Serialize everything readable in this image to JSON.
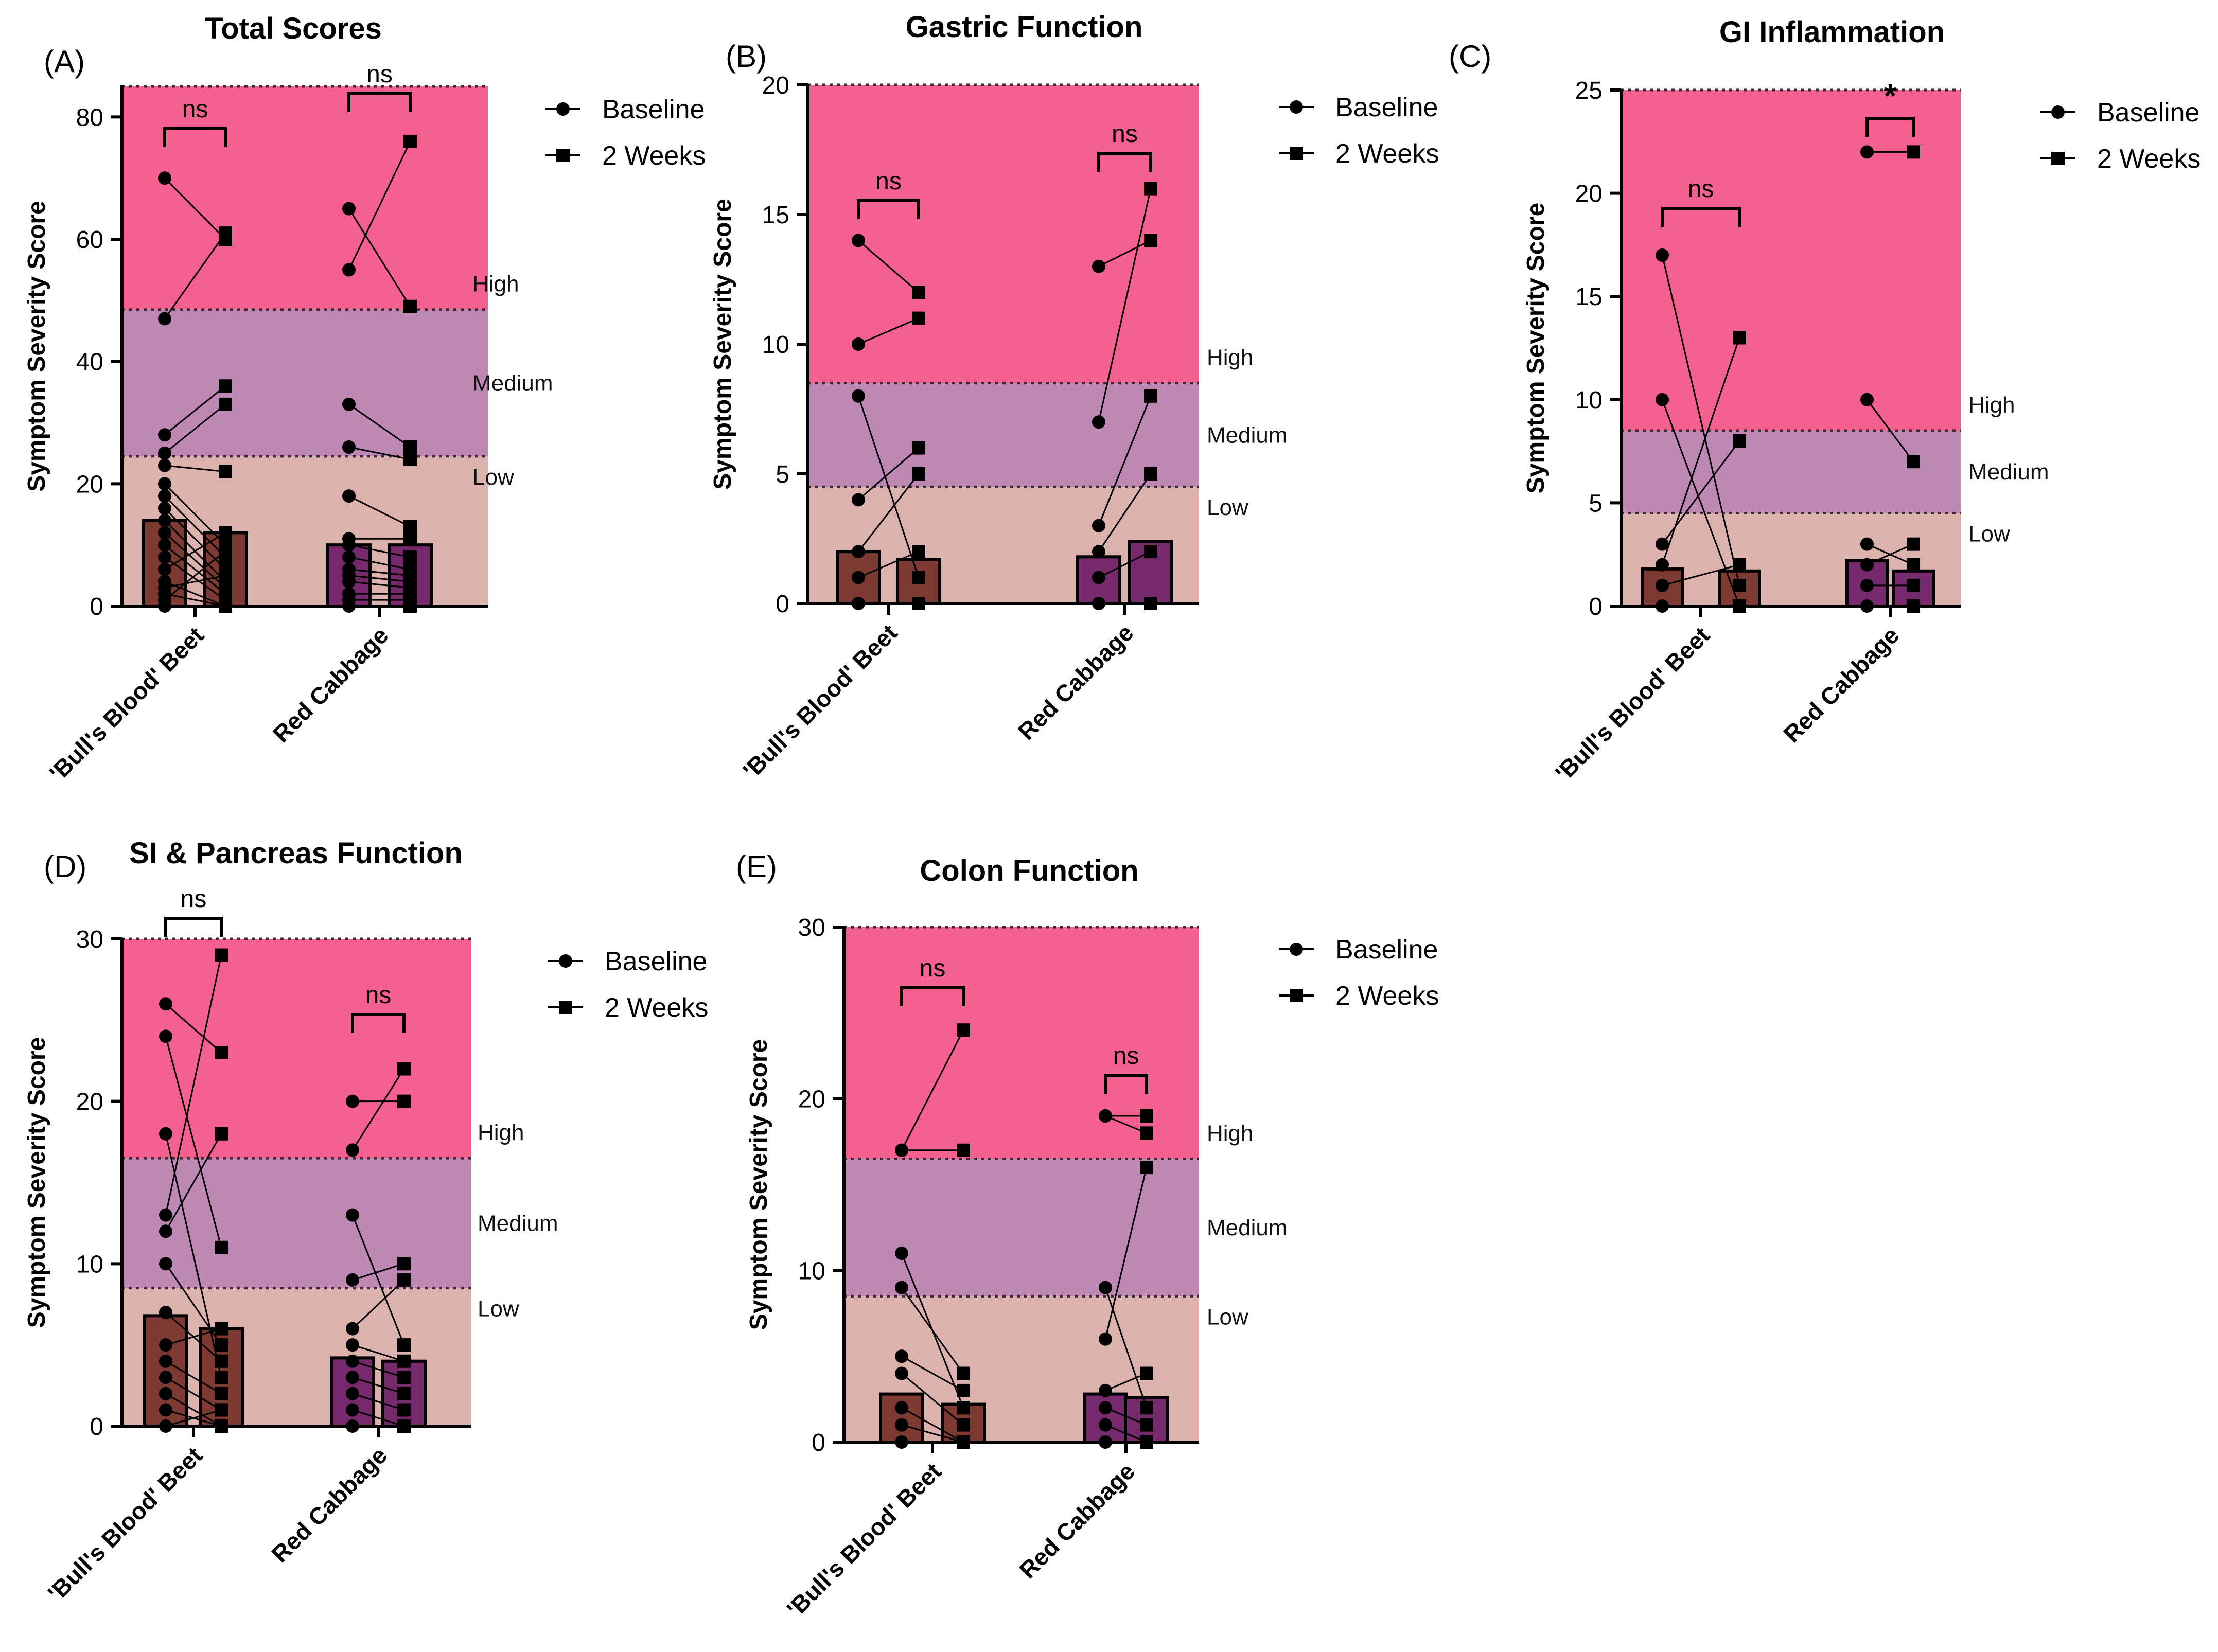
{
  "figure": {
    "legend": {
      "baseline": "Baseline",
      "two_weeks": "2 Weeks"
    },
    "severity_labels": {
      "high": "High",
      "medium": "Medium",
      "low": "Low"
    },
    "y_axis_label": "Symptom Severity Score",
    "groups": [
      "'Bull's Blood' Beet",
      "Red Cabbage"
    ],
    "colors": {
      "high_zone": "#F4618F",
      "medium_zone": "#BE87B4",
      "low_zone": "#DBB2AD",
      "beet_bar": "#7C3A33",
      "cabbage_bar": "#772A6B",
      "ink": "#000000"
    }
  },
  "chart_data": [
    {
      "type": "bar",
      "panel": "(A)",
      "title": "Total Scores",
      "ylabel": "Symptom Severity Score",
      "ylim": [
        0,
        85
      ],
      "yticks": [
        0,
        20,
        40,
        60,
        80
      ],
      "thresholds": {
        "low_max": 24.5,
        "medium_max": 48.5
      },
      "categories": [
        "'Bull's Blood' Beet",
        "Red Cabbage"
      ],
      "significance": [
        "ns",
        "ns"
      ],
      "series": [
        {
          "name": "Baseline",
          "values": [
            14,
            10
          ]
        },
        {
          "name": "2 Weeks",
          "values": [
            12,
            10
          ]
        }
      ],
      "pairs": [
        [
          [
            70,
            60
          ],
          [
            47,
            61
          ],
          [
            28,
            36
          ],
          [
            25,
            33
          ],
          [
            23,
            22
          ],
          [
            20,
            10
          ],
          [
            18,
            8
          ],
          [
            16,
            6
          ],
          [
            14,
            4
          ],
          [
            12,
            3
          ],
          [
            10,
            2
          ],
          [
            8,
            1
          ],
          [
            6,
            12
          ],
          [
            4,
            0
          ],
          [
            3,
            5
          ],
          [
            2,
            0
          ],
          [
            1,
            9
          ],
          [
            0,
            0
          ]
        ],
        [
          [
            65,
            49
          ],
          [
            55,
            76
          ],
          [
            33,
            26
          ],
          [
            26,
            24
          ],
          [
            18,
            13
          ],
          [
            11,
            11
          ],
          [
            10,
            8
          ],
          [
            8,
            6
          ],
          [
            6,
            5
          ],
          [
            5,
            4
          ],
          [
            4,
            3
          ],
          [
            2,
            2
          ],
          [
            1,
            1
          ],
          [
            0,
            0
          ]
        ]
      ]
    },
    {
      "type": "bar",
      "panel": "(B)",
      "title": "Gastric Function",
      "ylabel": "Symptom Severity Score",
      "ylim": [
        0,
        20
      ],
      "yticks": [
        0,
        5,
        10,
        15,
        20
      ],
      "thresholds": {
        "low_max": 4.5,
        "medium_max": 8.5
      },
      "categories": [
        "'Bull's Blood' Beet",
        "Red Cabbage"
      ],
      "significance": [
        "ns",
        "ns"
      ],
      "series": [
        {
          "name": "Baseline",
          "values": [
            2,
            1.8
          ]
        },
        {
          "name": "2 Weeks",
          "values": [
            1.7,
            2.4
          ]
        }
      ],
      "pairs": [
        [
          [
            14,
            12
          ],
          [
            10,
            11
          ],
          [
            8,
            1
          ],
          [
            4,
            6
          ],
          [
            2,
            5
          ],
          [
            1,
            2
          ],
          [
            0,
            0
          ]
        ],
        [
          [
            13,
            14
          ],
          [
            7,
            16
          ],
          [
            3,
            8
          ],
          [
            2,
            5
          ],
          [
            1,
            2
          ],
          [
            0,
            0
          ]
        ]
      ]
    },
    {
      "type": "bar",
      "panel": "(C)",
      "title": "GI Inflammation",
      "ylabel": "Symptom Severity Score",
      "ylim": [
        0,
        25
      ],
      "yticks": [
        0,
        5,
        10,
        15,
        20,
        25
      ],
      "thresholds": {
        "low_max": 4.5,
        "medium_max": 8.5
      },
      "categories": [
        "'Bull's Blood' Beet",
        "Red Cabbage"
      ],
      "significance": [
        "ns",
        "*"
      ],
      "series": [
        {
          "name": "Baseline",
          "values": [
            1.8,
            2.2
          ]
        },
        {
          "name": "2 Weeks",
          "values": [
            1.7,
            1.7
          ]
        }
      ],
      "pairs": [
        [
          [
            17,
            1
          ],
          [
            10,
            0
          ],
          [
            3,
            8
          ],
          [
            2,
            13
          ],
          [
            1,
            2
          ],
          [
            0,
            0
          ]
        ],
        [
          [
            22,
            22
          ],
          [
            10,
            7
          ],
          [
            3,
            2
          ],
          [
            2,
            3
          ],
          [
            1,
            1
          ],
          [
            0,
            0
          ]
        ]
      ]
    },
    {
      "type": "bar",
      "panel": "(D)",
      "title": "SI & Pancreas Function",
      "ylabel": "Symptom Severity Score",
      "ylim": [
        0,
        30
      ],
      "yticks": [
        0,
        10,
        20,
        30
      ],
      "thresholds": {
        "low_max": 8.5,
        "medium_max": 16.5
      },
      "categories": [
        "'Bull's Blood' Beet",
        "Red Cabbage"
      ],
      "significance": [
        "ns",
        "ns"
      ],
      "series": [
        {
          "name": "Baseline",
          "values": [
            6.8,
            4.2
          ]
        },
        {
          "name": "2 Weeks",
          "values": [
            6,
            4
          ]
        }
      ],
      "pairs": [
        [
          [
            26,
            23
          ],
          [
            24,
            11
          ],
          [
            18,
            3
          ],
          [
            13,
            29
          ],
          [
            12,
            18
          ],
          [
            10,
            5
          ],
          [
            7,
            4
          ],
          [
            5,
            6
          ],
          [
            4,
            2
          ],
          [
            3,
            1
          ],
          [
            2,
            0
          ],
          [
            1,
            0
          ],
          [
            0,
            1
          ]
        ],
        [
          [
            20,
            20
          ],
          [
            17,
            22
          ],
          [
            13,
            5
          ],
          [
            9,
            10
          ],
          [
            6,
            9
          ],
          [
            5,
            4
          ],
          [
            4,
            3
          ],
          [
            3,
            2
          ],
          [
            2,
            1
          ],
          [
            1,
            0
          ],
          [
            0,
            0
          ]
        ]
      ]
    },
    {
      "type": "bar",
      "panel": "(E)",
      "title": "Colon Function",
      "ylabel": "Symptom Severity Score",
      "ylim": [
        0,
        30
      ],
      "yticks": [
        0,
        10,
        20,
        30
      ],
      "thresholds": {
        "low_max": 8.5,
        "medium_max": 16.5
      },
      "categories": [
        "'Bull's Blood' Beet",
        "Red Cabbage"
      ],
      "significance": [
        "ns",
        "ns"
      ],
      "series": [
        {
          "name": "Baseline",
          "values": [
            2.8,
            2.8
          ]
        },
        {
          "name": "2 Weeks",
          "values": [
            2.2,
            2.6
          ]
        }
      ],
      "pairs": [
        [
          [
            17,
            24
          ],
          [
            17,
            17
          ],
          [
            11,
            2
          ],
          [
            9,
            4
          ],
          [
            5,
            3
          ],
          [
            4,
            1
          ],
          [
            2,
            0
          ],
          [
            1,
            0
          ],
          [
            0,
            0
          ]
        ],
        [
          [
            19,
            18
          ],
          [
            19,
            19
          ],
          [
            9,
            2
          ],
          [
            6,
            16
          ],
          [
            3,
            4
          ],
          [
            2,
            1
          ],
          [
            1,
            0
          ],
          [
            0,
            0
          ]
        ]
      ]
    }
  ]
}
